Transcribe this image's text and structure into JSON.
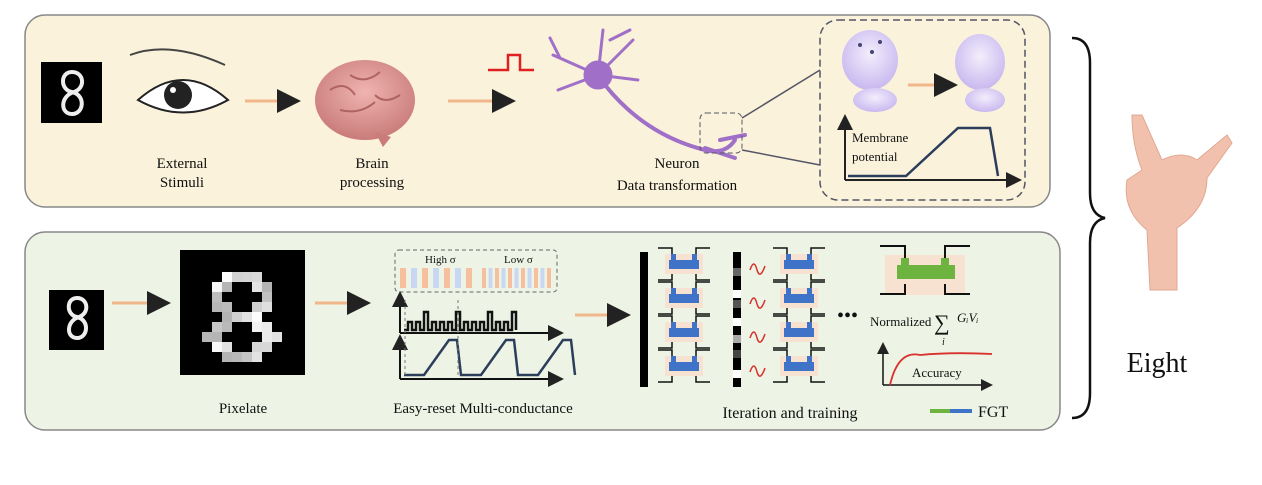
{
  "top_panel": {
    "labels": {
      "external_stimuli_1": "External",
      "external_stimuli_2": "Stimuli",
      "brain_1": "Brain",
      "brain_2": "processing",
      "neuron_1": "Neuron",
      "neuron_2": "Data transformation",
      "membrane_1": "Membrane",
      "membrane_2": "potential"
    },
    "background_color": "#fbf2db"
  },
  "bottom_panel": {
    "labels": {
      "pixelate": "Pixelate",
      "multi_conductance": "Easy-reset Multi-conductance",
      "high_sigma": "High σ",
      "low_sigma": "Low σ",
      "iteration": "Iteration and training",
      "ellipsis": "•••",
      "normalized": "Normalized",
      "sum_symbol": "∑",
      "sum_index": "i",
      "sum_term": "GᵢVᵢ",
      "accuracy": "Accuracy",
      "legend_fgt": "FGT"
    },
    "background_color": "#eef4e5",
    "colors": {
      "fgt_green": "#6cb33f",
      "fgt_blue": "#3f73c8",
      "arrow": "#f0b88a",
      "signal_red": "#d9302c"
    }
  },
  "result_label": "Eight"
}
